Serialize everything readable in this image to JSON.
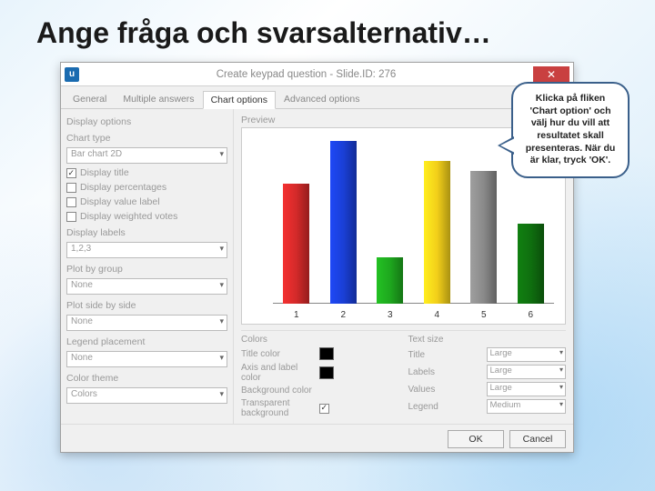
{
  "slide_title": "Ange fråga och svarsalternativ…",
  "dialog": {
    "title": "Create keypad question - Slide.ID: 276",
    "icon_letter": "u",
    "tabs": [
      "General",
      "Multiple answers",
      "Chart options",
      "Advanced options"
    ],
    "active_tab": 2,
    "left": {
      "display_options": "Display options",
      "chart_type_label": "Chart type",
      "chart_type_value": "Bar chart 2D",
      "display_title": "Display title",
      "display_title_checked": true,
      "display_percentages": "Display percentages",
      "display_value_label": "Display value label",
      "display_weighted": "Display weighted votes",
      "display_labels_label": "Display labels",
      "display_labels_value": "1,2,3",
      "plot_by_group_label": "Plot by group",
      "plot_by_group_value": "None",
      "plot_side_label": "Plot side by side",
      "plot_side_value": "None",
      "legend_label": "Legend placement",
      "legend_value": "None",
      "color_theme_label": "Color theme",
      "color_theme_value": "Colors"
    },
    "preview_label": "Preview",
    "chart": {
      "type": "bar",
      "categories": [
        "1",
        "2",
        "3",
        "4",
        "5",
        "6"
      ],
      "values": [
        72,
        98,
        28,
        86,
        80,
        48
      ],
      "bar_colors": [
        "#d42a2a",
        "#1a3fd6",
        "#1ea81e",
        "#f2cf1a",
        "#8a8a8a",
        "#0f6f0f"
      ],
      "ymax": 100,
      "background_color": "#ffffff",
      "baseline_color": "#888888"
    },
    "colors": {
      "head_left": "Colors",
      "head_right": "Text size",
      "title_color_label": "Title color",
      "title_swatch": "#000000",
      "axis_color_label": "Axis and label color",
      "axis_swatch": "#000000",
      "bg_label": "Background color",
      "transparent_label": "Transparent background",
      "transparent_checked": true,
      "text_rows": [
        {
          "label": "Title",
          "value": "Large"
        },
        {
          "label": "Labels",
          "value": "Large"
        },
        {
          "label": "Values",
          "value": "Large"
        },
        {
          "label": "Legend",
          "value": "Medium"
        }
      ]
    },
    "ok": "OK",
    "cancel": "Cancel"
  },
  "callout_text": "Klicka på fliken 'Chart option' och välj hur du vill att resultatet skall presenteras. När du är klar, tryck 'OK'."
}
